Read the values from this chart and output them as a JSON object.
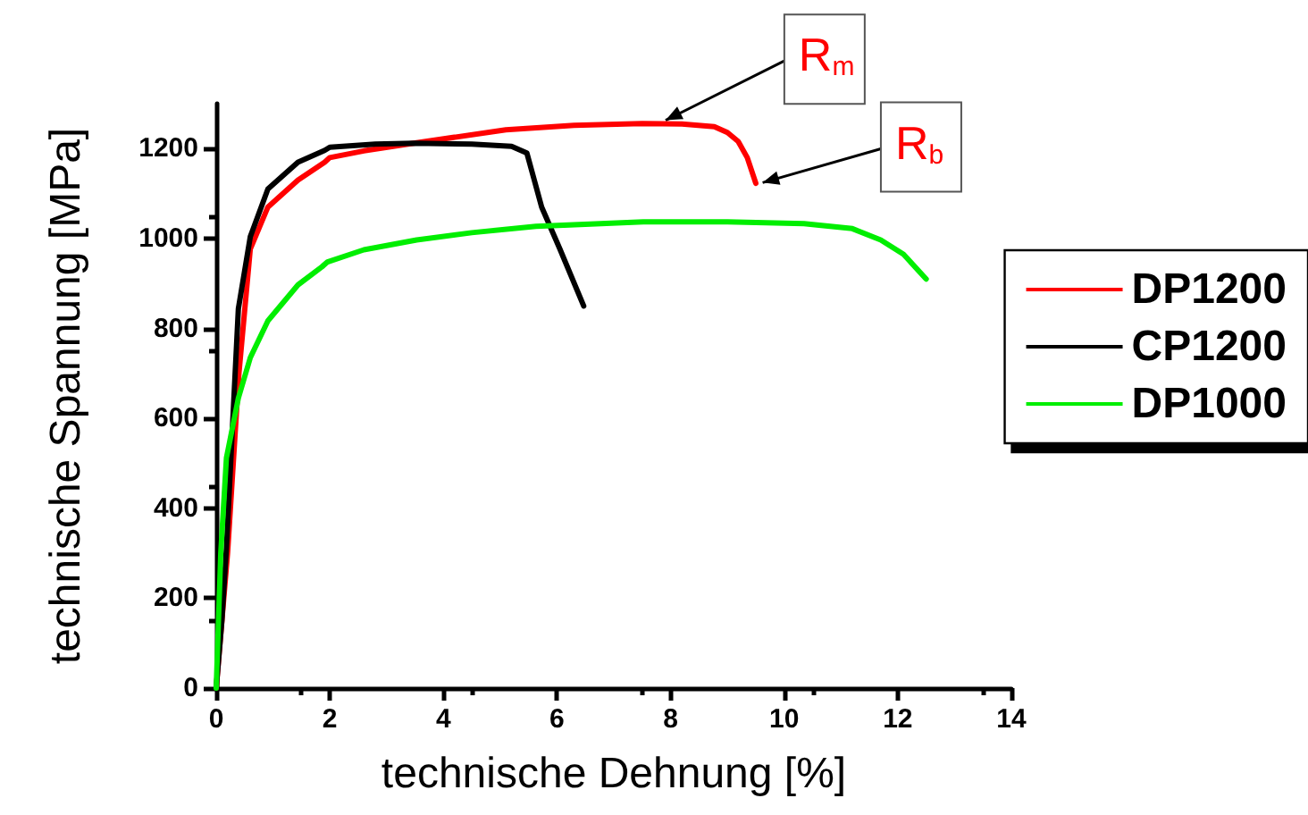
{
  "chart_data": {
    "type": "line",
    "xlabel": "technische Dehnung [%]",
    "ylabel": "technische Spannung [MPa]",
    "xlim": [
      0,
      14
    ],
    "xticks": [
      0,
      2,
      4,
      6,
      8,
      10,
      12,
      14
    ],
    "ylim": [
      0,
      1300
    ],
    "yticks": [
      0,
      200,
      400,
      600,
      800,
      1000,
      1200
    ],
    "grid": false,
    "legend": "right",
    "marker": "none",
    "line_style": "solid",
    "series": [
      {
        "name": "DP1200",
        "color": "#ff0000",
        "x": [
          0,
          0.1,
          0.2,
          0.4,
          0.6,
          0.91,
          1.44,
          1.91,
          2.0,
          2.6,
          3.53,
          5.1,
          6.3,
          7.5,
          8.2,
          8.77,
          9.0,
          9.19,
          9.35,
          9.5
        ],
        "values": [
          0,
          150,
          300,
          700,
          977,
          1070,
          1130,
          1170,
          1180,
          1195,
          1213,
          1242,
          1252,
          1256,
          1255,
          1249,
          1236,
          1216,
          1180,
          1123
        ]
      },
      {
        "name": "CP1200",
        "color": "#000000",
        "x": [
          0,
          0.1,
          0.18,
          0.39,
          0.6,
          0.91,
          1.44,
          1.91,
          2.0,
          2.8,
          3.5,
          4.5,
          5.2,
          5.47,
          5.6,
          5.73,
          6.05,
          6.47
        ],
        "values": [
          0,
          150,
          312,
          844,
          1004,
          1110,
          1170,
          1196,
          1203,
          1210,
          1212,
          1210,
          1205,
          1190,
          1130,
          1070,
          977,
          850
        ]
      },
      {
        "name": "DP1000",
        "color": "#00ee00",
        "x": [
          0,
          0.08,
          0.18,
          0.39,
          0.6,
          0.91,
          1.44,
          1.86,
          1.96,
          2.6,
          3.53,
          4.5,
          5.63,
          7.52,
          9.0,
          10.35,
          11.2,
          11.7,
          12.1,
          12.5
        ],
        "values": [
          0,
          300,
          512,
          645,
          735,
          817,
          897,
          937,
          948,
          975,
          997,
          1013,
          1027,
          1037,
          1037,
          1033,
          1022,
          997,
          965,
          910
        ]
      }
    ],
    "annotations": [
      {
        "text": "R$_{m}$",
        "x": 7.8,
        "y": 1256
      },
      {
        "text": "R$_{b}$",
        "x": 9.5,
        "y": 1120
      }
    ]
  }
}
